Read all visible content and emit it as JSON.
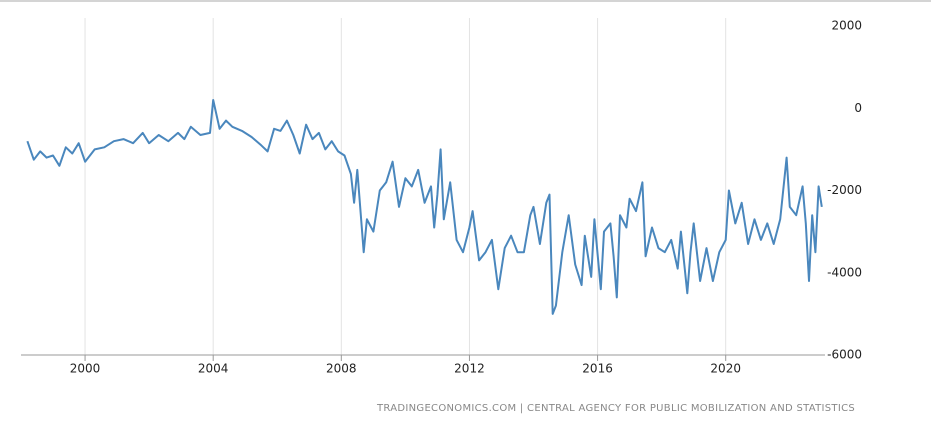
{
  "chart_data": {
    "type": "line",
    "source": "TRADINGECONOMICS.COM | CENTRAL AGENCY FOR PUBLIC MOBILIZATION AND STATISTICS",
    "xlim": [
      1998.0,
      2023.1
    ],
    "xticks": [
      2000,
      2004,
      2008,
      2012,
      2016,
      2020
    ],
    "ylim": [
      -6000,
      2000
    ],
    "yticks": [
      2000,
      0,
      -2000,
      -4000,
      -6000
    ],
    "grid": "x",
    "series": [
      {
        "color": "#4a87bd",
        "x": [
          1998.2,
          1998.4,
          1998.6,
          1998.8,
          1999.0,
          1999.2,
          1999.4,
          1999.6,
          1999.8,
          2000.0,
          2000.3,
          2000.6,
          2000.9,
          2001.2,
          2001.5,
          2001.8,
          2002.0,
          2002.3,
          2002.6,
          2002.9,
          2003.1,
          2003.3,
          2003.6,
          2003.9,
          2004.0,
          2004.2,
          2004.4,
          2004.6,
          2004.9,
          2005.2,
          2005.5,
          2005.7,
          2005.9,
          2006.1,
          2006.3,
          2006.5,
          2006.7,
          2006.9,
          2007.1,
          2007.3,
          2007.5,
          2007.7,
          2007.9,
          2008.1,
          2008.3,
          2008.4,
          2008.5,
          2008.7,
          2008.8,
          2009.0,
          2009.2,
          2009.4,
          2009.6,
          2009.8,
          2010.0,
          2010.2,
          2010.4,
          2010.6,
          2010.8,
          2010.9,
          2011.0,
          2011.1,
          2011.2,
          2011.4,
          2011.6,
          2011.8,
          2012.0,
          2012.1,
          2012.3,
          2012.5,
          2012.7,
          2012.9,
          2013.1,
          2013.3,
          2013.5,
          2013.7,
          2013.9,
          2014.0,
          2014.2,
          2014.4,
          2014.5,
          2014.6,
          2014.7,
          2014.9,
          2015.1,
          2015.3,
          2015.5,
          2015.6,
          2015.8,
          2015.9,
          2016.1,
          2016.2,
          2016.4,
          2016.5,
          2016.6,
          2016.7,
          2016.9,
          2017.0,
          2017.2,
          2017.4,
          2017.5,
          2017.7,
          2017.9,
          2018.1,
          2018.3,
          2018.5,
          2018.6,
          2018.8,
          2018.9,
          2019.0,
          2019.2,
          2019.4,
          2019.6,
          2019.8,
          2020.0,
          2020.1,
          2020.3,
          2020.5,
          2020.7,
          2020.9,
          2021.1,
          2021.3,
          2021.5,
          2021.7,
          2021.9,
          2022.0,
          2022.2,
          2022.4,
          2022.5,
          2022.6,
          2022.7,
          2022.8,
          2022.9,
          2023.0
        ],
        "values": [
          -800,
          -1250,
          -1050,
          -1200,
          -1150,
          -1400,
          -950,
          -1100,
          -850,
          -1300,
          -1000,
          -950,
          -800,
          -750,
          -850,
          -600,
          -850,
          -650,
          -800,
          -600,
          -750,
          -450,
          -650,
          -600,
          200,
          -500,
          -300,
          -450,
          -550,
          -700,
          -900,
          -1050,
          -500,
          -550,
          -300,
          -650,
          -1100,
          -400,
          -750,
          -600,
          -1000,
          -800,
          -1050,
          -1150,
          -1600,
          -2300,
          -1500,
          -3500,
          -2700,
          -3000,
          -2000,
          -1800,
          -1300,
          -2400,
          -1700,
          -1900,
          -1500,
          -2300,
          -1900,
          -2900,
          -2100,
          -1000,
          -2700,
          -1800,
          -3200,
          -3500,
          -2900,
          -2500,
          -3700,
          -3500,
          -3200,
          -4400,
          -3400,
          -3100,
          -3500,
          -3500,
          -2600,
          -2400,
          -3300,
          -2300,
          -2100,
          -5000,
          -4800,
          -3500,
          -2600,
          -3800,
          -4300,
          -3100,
          -4100,
          -2700,
          -4400,
          -3000,
          -2800,
          -3600,
          -4600,
          -2600,
          -2900,
          -2200,
          -2500,
          -1800,
          -3600,
          -2900,
          -3400,
          -3500,
          -3200,
          -3900,
          -3000,
          -4500,
          -3500,
          -2800,
          -4200,
          -3400,
          -4200,
          -3500,
          -3200,
          -2000,
          -2800,
          -2300,
          -3300,
          -2700,
          -3200,
          -2800,
          -3300,
          -2700,
          -1200,
          -2400,
          -2600,
          -1900,
          -2800,
          -4200,
          -2600,
          -3500,
          -1900,
          -2400
        ]
      }
    ]
  }
}
